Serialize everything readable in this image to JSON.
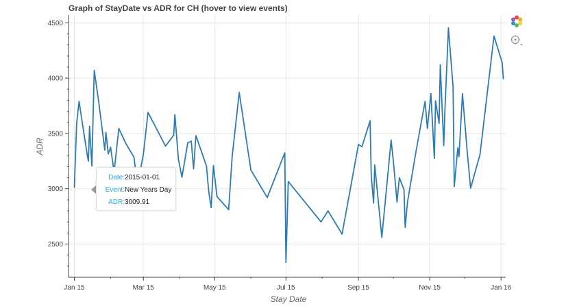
{
  "title": "Graph of StayDate vs ADR for CH (hover to view events)",
  "chart_data": {
    "type": "line",
    "title": "Graph of StayDate vs ADR for CH (hover to view events)",
    "xlabel": "Stay Date",
    "ylabel": "ADR",
    "x_ticks": [
      "Jan 15",
      "Mar 15",
      "May 15",
      "Jul 15",
      "Sep 15",
      "Nov 15",
      "Jan 16"
    ],
    "y_ticks": [
      "2500",
      "3000",
      "3500",
      "4000",
      "4500"
    ],
    "xlim": [
      "2014-12-27",
      "2016-01-05"
    ],
    "ylim": [
      2200,
      4570
    ],
    "grid": true,
    "line_color": "#2e7bb4",
    "series": [
      {
        "x": [
          "2015-01-01",
          "2015-01-03",
          "2015-01-05",
          "2015-01-08",
          "2015-01-12",
          "2015-01-13",
          "2015-01-14",
          "2015-01-16",
          "2015-01-18",
          "2015-01-22",
          "2015-01-27",
          "2015-01-28",
          "2015-01-30",
          "2015-02-01",
          "2015-02-04",
          "2015-02-08",
          "2015-02-14",
          "2015-02-21",
          "2015-02-24",
          "2015-03-01",
          "2015-03-05",
          "2015-03-20",
          "2015-03-27",
          "2015-03-28",
          "2015-03-31",
          "2015-04-03",
          "2015-04-08",
          "2015-04-11",
          "2015-04-13",
          "2015-04-15",
          "2015-04-24",
          "2015-04-26",
          "2015-04-28",
          "2015-04-30",
          "2015-05-03",
          "2015-05-13",
          "2015-05-16",
          "2015-05-22",
          "2015-06-01",
          "2015-06-15",
          "2015-06-30",
          "2015-07-01",
          "2015-07-03",
          "2015-07-31",
          "2015-08-06",
          "2015-08-18",
          "2015-09-01",
          "2015-09-04",
          "2015-09-11",
          "2015-09-12",
          "2015-09-14",
          "2015-09-15",
          "2015-09-21",
          "2015-09-29",
          "2015-10-01",
          "2015-10-04",
          "2015-10-06",
          "2015-10-10",
          "2015-10-11",
          "2015-10-13",
          "2015-10-20",
          "2015-10-28",
          "2015-10-30",
          "2015-11-02",
          "2015-11-05",
          "2015-11-06",
          "2015-11-09",
          "2015-11-10",
          "2015-11-13",
          "2015-11-14",
          "2015-11-17",
          "2015-11-21",
          "2015-11-22",
          "2015-11-25",
          "2015-11-26",
          "2015-11-29",
          "2015-12-03",
          "2015-12-06",
          "2015-12-14",
          "2015-12-26",
          "2016-01-02",
          "2016-01-03"
        ],
        "y": [
          3009.91,
          3595,
          3790,
          3580,
          3305,
          3250,
          3565,
          3205,
          4070,
          3770,
          3350,
          3510,
          3315,
          3375,
          3150,
          3545,
          3410,
          3285,
          3030,
          3310,
          3690,
          3385,
          3485,
          3670,
          3265,
          3105,
          3415,
          3430,
          3180,
          3480,
          3205,
          2970,
          2830,
          3210,
          2930,
          2810,
          3290,
          3870,
          3170,
          2920,
          3325,
          2335,
          3065,
          2700,
          2800,
          2590,
          3400,
          3380,
          3615,
          3115,
          2870,
          3215,
          2560,
          3440,
          3240,
          2880,
          3100,
          2990,
          2650,
          2880,
          3320,
          3790,
          3545,
          3860,
          3275,
          3795,
          3590,
          4120,
          3390,
          3710,
          4455,
          3920,
          3020,
          3370,
          3290,
          3860,
          3345,
          3005,
          3310,
          4380,
          4140,
          3990
        ]
      }
    ],
    "tooltip": {
      "date_key": "Date:",
      "date_value": "2015-01-01",
      "event_key": "Event:",
      "event_value": "New Years Day",
      "adr_key": "ADR:",
      "adr_value": "3009.91"
    }
  },
  "toolbar": {
    "tools": [
      {
        "name": "bokeh-logo-icon"
      },
      {
        "name": "hover-tool-icon"
      }
    ]
  }
}
